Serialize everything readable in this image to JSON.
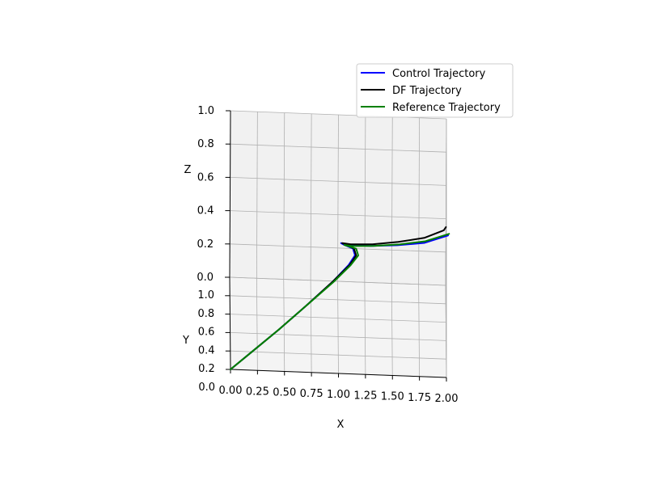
{
  "chart_data": {
    "type": "line",
    "projection": "3d",
    "xlabel": "X",
    "ylabel": "Y",
    "zlabel": "Z",
    "xlim": [
      0,
      2.0
    ],
    "ylim": [
      0,
      1.0
    ],
    "zlim": [
      0,
      1.0
    ],
    "xticks": [
      "0.00",
      "0.25",
      "0.50",
      "0.75",
      "1.00",
      "1.25",
      "1.50",
      "1.75",
      "2.00"
    ],
    "yticks": [
      "0.0",
      "0.2",
      "0.4",
      "0.6",
      "0.8",
      "1.0"
    ],
    "zticks": [
      "0.0",
      "0.2",
      "0.4",
      "0.6",
      "0.8",
      "1.0"
    ],
    "grid": true,
    "legend_position": "top-right",
    "series": [
      {
        "name": "Control Trajectory",
        "color": "#0000ff",
        "points": [
          [
            0.0,
            0.0,
            0.0
          ],
          [
            0.2,
            0.2,
            0.0
          ],
          [
            0.45,
            0.45,
            0.0
          ],
          [
            0.7,
            0.7,
            0.01
          ],
          [
            0.95,
            0.92,
            0.04
          ],
          [
            1.1,
            1.0,
            0.1
          ],
          [
            1.16,
            1.0,
            0.16
          ],
          [
            1.14,
            1.0,
            0.2
          ],
          [
            1.06,
            1.0,
            0.22
          ],
          [
            1.03,
            1.0,
            0.23
          ],
          [
            1.1,
            1.0,
            0.22
          ],
          [
            1.3,
            1.0,
            0.22
          ],
          [
            1.55,
            1.0,
            0.23
          ],
          [
            1.8,
            1.0,
            0.25
          ],
          [
            2.02,
            1.0,
            0.3
          ]
        ]
      },
      {
        "name": "DF Trajectory",
        "color": "#000000",
        "points": [
          [
            0.0,
            0.0,
            0.0
          ],
          [
            0.2,
            0.2,
            0.0
          ],
          [
            0.45,
            0.45,
            0.0
          ],
          [
            0.7,
            0.7,
            0.01
          ],
          [
            0.95,
            0.92,
            0.04
          ],
          [
            1.11,
            1.0,
            0.1
          ],
          [
            1.17,
            1.0,
            0.16
          ],
          [
            1.15,
            1.0,
            0.2
          ],
          [
            1.07,
            1.0,
            0.225
          ],
          [
            1.04,
            1.0,
            0.23
          ],
          [
            1.12,
            1.0,
            0.225
          ],
          [
            1.32,
            1.0,
            0.23
          ],
          [
            1.56,
            1.0,
            0.25
          ],
          [
            1.8,
            1.0,
            0.28
          ],
          [
            1.98,
            1.0,
            0.33
          ],
          [
            2.0,
            1.0,
            0.35
          ]
        ]
      },
      {
        "name": "Reference Trajectory",
        "color": "#008000",
        "points": [
          [
            0.0,
            0.0,
            0.0
          ],
          [
            0.2,
            0.2,
            0.0
          ],
          [
            0.45,
            0.45,
            0.0
          ],
          [
            0.7,
            0.7,
            0.01
          ],
          [
            0.96,
            0.92,
            0.04
          ],
          [
            1.12,
            1.0,
            0.1
          ],
          [
            1.19,
            1.0,
            0.16
          ],
          [
            1.17,
            1.0,
            0.2
          ],
          [
            1.09,
            1.0,
            0.215
          ],
          [
            1.06,
            1.0,
            0.22
          ],
          [
            1.13,
            1.0,
            0.215
          ],
          [
            1.33,
            1.0,
            0.22
          ],
          [
            1.57,
            1.0,
            0.235
          ],
          [
            1.81,
            1.0,
            0.26
          ],
          [
            2.03,
            1.0,
            0.31
          ]
        ]
      }
    ]
  }
}
